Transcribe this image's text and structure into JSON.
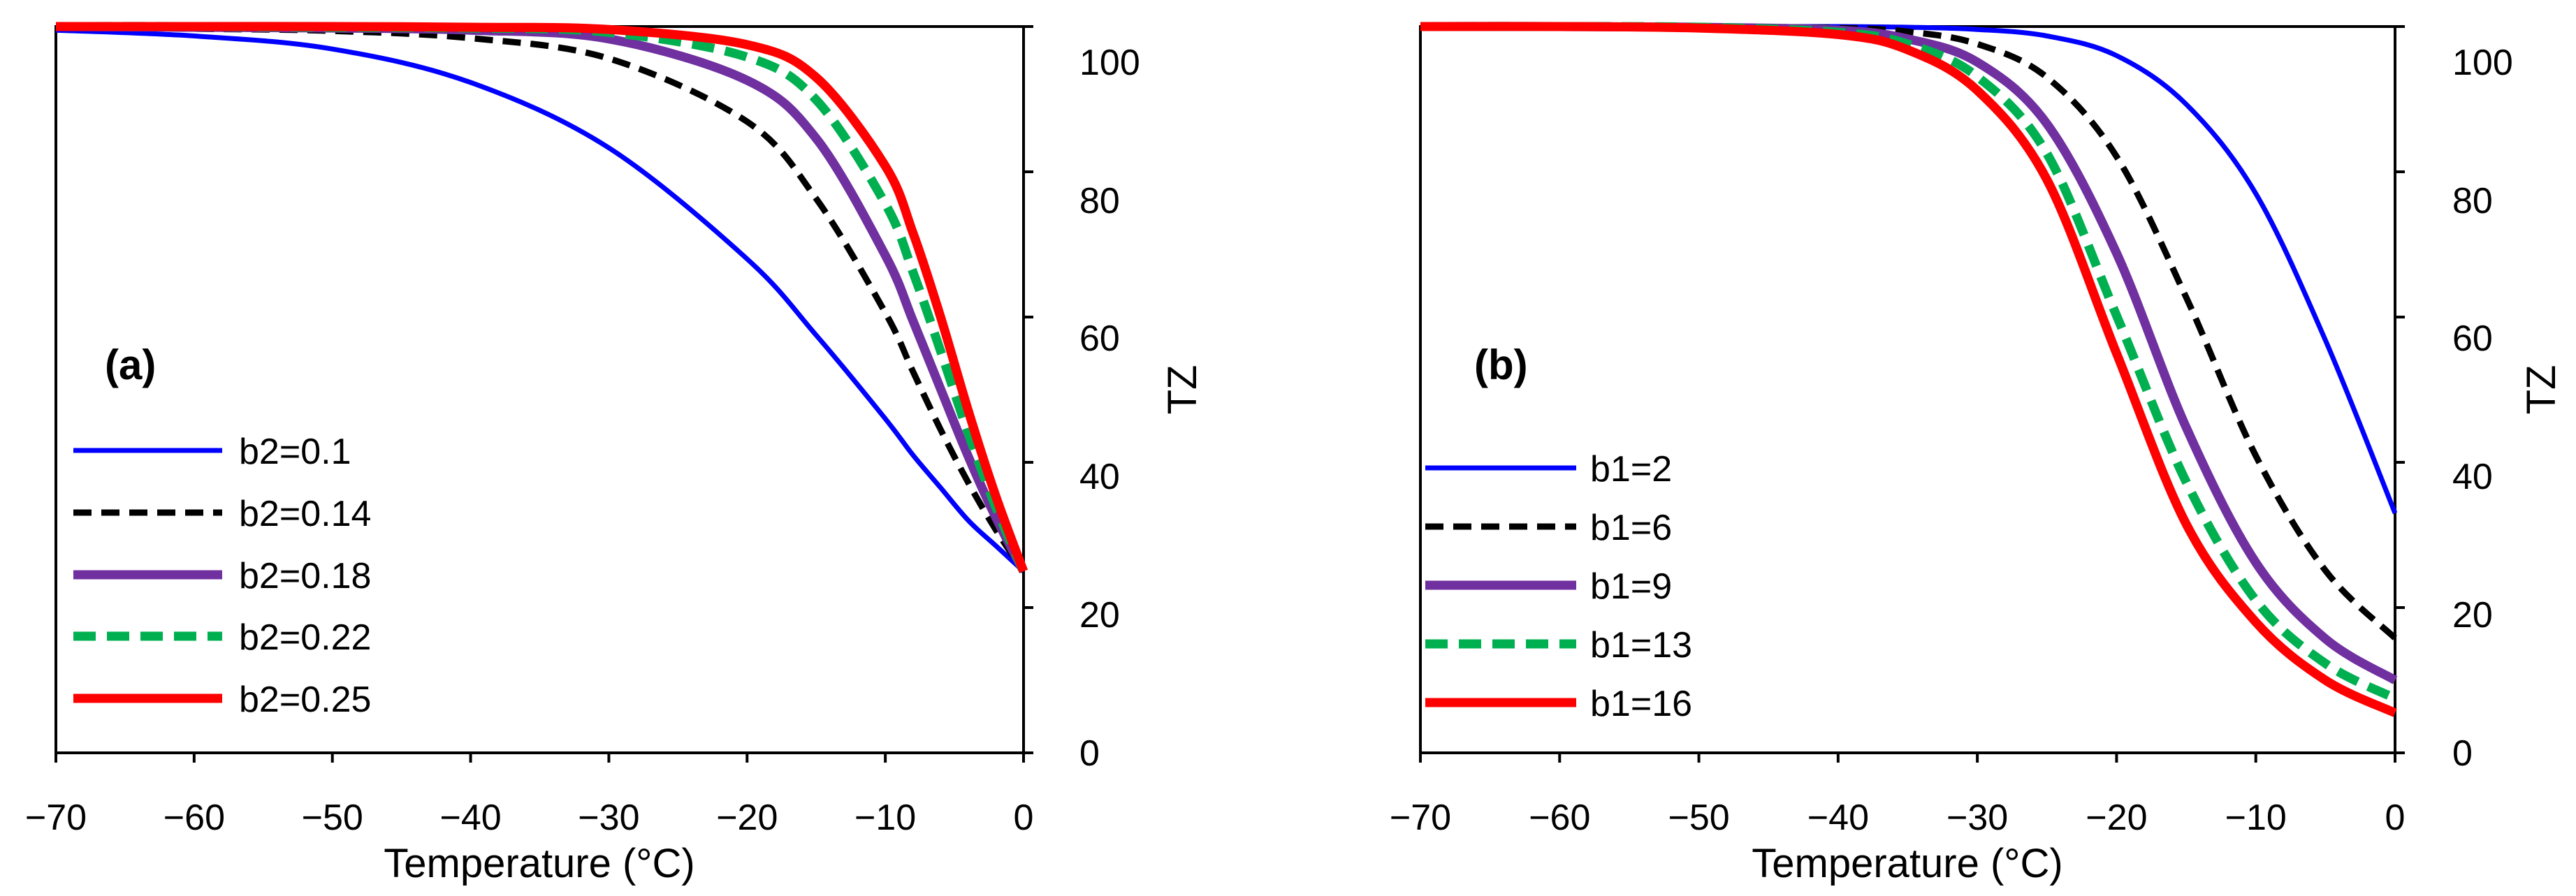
{
  "chart_data": [
    {
      "type": "line",
      "panel_label": "(a)",
      "xlabel": "Temperature (°C)",
      "ylabel": "TZ",
      "xlim": [
        -70,
        0
      ],
      "ylim": [
        0,
        100
      ],
      "xticks": [
        -70,
        -60,
        -50,
        -40,
        -30,
        -20,
        -10,
        0
      ],
      "yticks": [
        0,
        20,
        40,
        60,
        80,
        100
      ],
      "xtick_labels": [
        "−70",
        "−60",
        "−50",
        "−40",
        "−30",
        "−20",
        "−10",
        "0"
      ],
      "ytick_labels": [
        "0",
        "20",
        "40",
        "60",
        "80",
        "100"
      ],
      "x": [
        -70,
        -60,
        -50,
        -40,
        -30,
        -20,
        -15,
        -10,
        -8,
        -6,
        -4,
        -2,
        0
      ],
      "legend_position": "lower-left",
      "series": [
        {
          "name": "b2=0.1",
          "color": "#0000ff",
          "style": "solid",
          "values": [
            99.5,
            98.7,
            96.9,
            92.3,
            83.3,
            68.0,
            57.5,
            46.0,
            41.0,
            36.5,
            32.0,
            28.5,
            25.0
          ]
        },
        {
          "name": "b2=0.14",
          "color": "#000000",
          "style": "dashed",
          "values": [
            99.9,
            99.7,
            99.4,
            98.4,
            95.6,
            86.9,
            76.3,
            60.6,
            52.5,
            44.5,
            37.2,
            30.7,
            25.0
          ]
        },
        {
          "name": "b2=0.18",
          "color": "#7030a0",
          "style": "solid",
          "values": [
            100,
            99.9,
            99.8,
            99.5,
            98.3,
            92.6,
            84.6,
            68.5,
            59.5,
            50.1,
            40.8,
            32.4,
            25.0
          ]
        },
        {
          "name": "b2=0.22",
          "color": "#00b050",
          "style": "dashed",
          "values": [
            100,
            100,
            99.9,
            99.8,
            99.2,
            95.8,
            89.9,
            75.6,
            66.2,
            55.3,
            44.0,
            33.8,
            25.0
          ]
        },
        {
          "name": "b2=0.25",
          "color": "#ff0000",
          "style": "solid",
          "values": [
            100,
            100,
            100,
            99.9,
            99.6,
            97.5,
            93.0,
            80.8,
            71.6,
            60.0,
            47.1,
            35.3,
            25.0
          ]
        }
      ]
    },
    {
      "type": "line",
      "panel_label": "(b)",
      "xlabel": "Temperature (°C)",
      "ylabel": "TZ",
      "xlim": [
        -70,
        0
      ],
      "ylim": [
        0,
        100
      ],
      "xticks": [
        -70,
        -60,
        -50,
        -40,
        -30,
        -20,
        -10,
        0
      ],
      "yticks": [
        0,
        20,
        40,
        60,
        80,
        100
      ],
      "xtick_labels": [
        "−70",
        "−60",
        "−50",
        "−40",
        "−30",
        "−20",
        "−10",
        "0"
      ],
      "ytick_labels": [
        "0",
        "20",
        "40",
        "60",
        "80",
        "100"
      ],
      "x": [
        -70,
        -60,
        -50,
        -40,
        -35,
        -30,
        -25,
        -20,
        -15,
        -10,
        -5,
        0
      ],
      "legend_position": "lower-left",
      "series": [
        {
          "name": "b1=2",
          "color": "#0000ff",
          "style": "solid",
          "values": [
            100,
            100,
            100,
            100,
            99.9,
            99.6,
            98.7,
            96.0,
            89.3,
            77.0,
            56.8,
            33.0
          ]
        },
        {
          "name": "b1=6",
          "color": "#000000",
          "style": "dashed",
          "values": [
            100,
            100,
            100,
            99.8,
            99.3,
            97.6,
            93.0,
            82.1,
            62.7,
            40.9,
            25.1,
            15.8
          ]
        },
        {
          "name": "b1=9",
          "color": "#7030a0",
          "style": "solid",
          "values": [
            100,
            100,
            99.9,
            99.5,
            98.3,
            95.1,
            86.6,
            68.8,
            44.8,
            26.2,
            15.7,
            10.0
          ]
        },
        {
          "name": "b1=13",
          "color": "#00b050",
          "style": "dashed",
          "values": [
            100,
            100,
            99.9,
            99.2,
            97.6,
            93.1,
            82.5,
            60.2,
            37.3,
            21.0,
            12.3,
            7.5
          ]
        },
        {
          "name": "b1=16",
          "color": "#ff0000",
          "style": "solid",
          "values": [
            100,
            100,
            99.8,
            98.9,
            96.8,
            91.2,
            78.9,
            55.0,
            31.5,
            18.0,
            10.0,
            5.5
          ]
        }
      ]
    }
  ]
}
